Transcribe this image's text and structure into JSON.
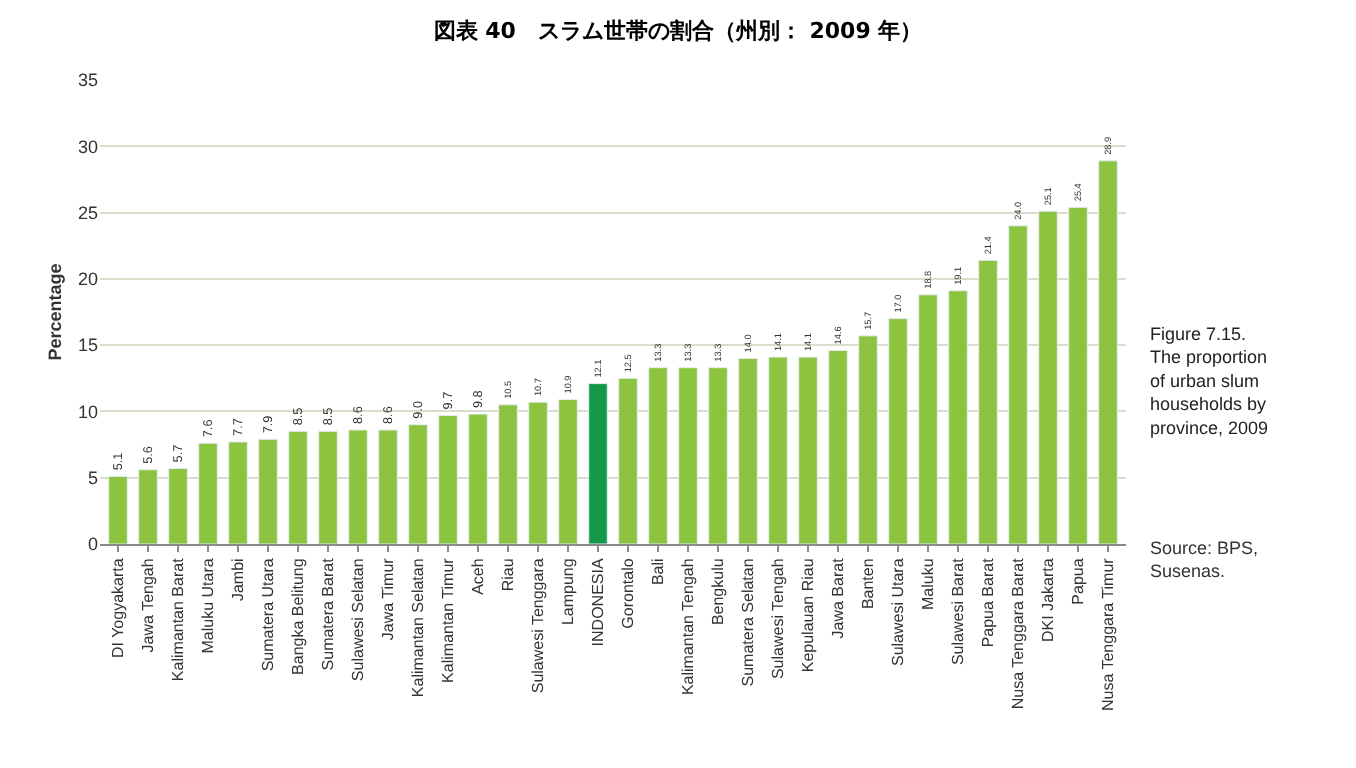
{
  "chart_data": {
    "type": "bar",
    "title": "図表 40　スラム世帯の割合（州別： 2009 年）",
    "ylabel": "Percentage",
    "categories": [
      "DI Yogyakarta",
      "Jawa Tengah",
      "Kalimantan Barat",
      "Maluku Utara",
      "Jambi",
      "Sumatera Utara",
      "Bangka Belitung",
      "Sumatera Barat",
      "Sulawesi Selatan",
      "Jawa Timur",
      "Kalimantan Selatan",
      "Kalimantan Timur",
      "Aceh",
      "Riau",
      "Sulawesi Tenggara",
      "Lampung",
      "INDONESIA",
      "Gorontalo",
      "Bali",
      "Kalimantan Tengah",
      "Bengkulu",
      "Sumatera Selatan",
      "Sulawesi Tengah",
      "Kepulauan Riau",
      "Jawa Barat",
      "Banten",
      "Sulawesi Utara",
      "Maluku",
      "Sulawesi Barat",
      "Papua Barat",
      "Nusa Tenggara Barat",
      "DKI Jakarta",
      "Papua",
      "Nusa Tenggara Timur"
    ],
    "values": [
      5.1,
      5.6,
      5.7,
      7.6,
      7.7,
      7.9,
      8.5,
      8.5,
      8.6,
      8.6,
      9.0,
      9.7,
      9.8,
      10.5,
      10.7,
      10.9,
      12.1,
      12.5,
      13.3,
      13.3,
      13.3,
      14.0,
      14.1,
      14.1,
      14.6,
      15.7,
      17.0,
      18.8,
      19.1,
      21.4,
      24.0,
      25.1,
      25.4,
      28.9
    ],
    "value_labels": [
      "5.1",
      "5.6",
      "5.7",
      "7.6",
      "7.7",
      "7.9",
      "8.5",
      "8.5",
      "8.6",
      "8.6",
      "9.0",
      "9.7",
      "9.8",
      "10.5",
      "10.7",
      "10.9",
      "12.1",
      "12.5",
      "13.3",
      "13.3",
      "13.3",
      "14.0",
      "14.1",
      "14.1",
      "14.6",
      "15.7",
      "17.0",
      "18.8",
      "19.1",
      "21.4",
      "24.0",
      "25.1",
      "25.4",
      "28.9"
    ],
    "colors": [
      "#8cc43f",
      "#8cc43f",
      "#8cc43f",
      "#8cc43f",
      "#8cc43f",
      "#8cc43f",
      "#8cc43f",
      "#8cc43f",
      "#8cc43f",
      "#8cc43f",
      "#8cc43f",
      "#8cc43f",
      "#8cc43f",
      "#8cc43f",
      "#8cc43f",
      "#8cc43f",
      "#16984a",
      "#8cc43f",
      "#8cc43f",
      "#8cc43f",
      "#8cc43f",
      "#8cc43f",
      "#8cc43f",
      "#8cc43f",
      "#8cc43f",
      "#8cc43f",
      "#8cc43f",
      "#8cc43f",
      "#8cc43f",
      "#8cc43f",
      "#8cc43f",
      "#8cc43f",
      "#8cc43f",
      "#8cc43f"
    ],
    "ylim": [
      0,
      35
    ],
    "yticks": [
      0,
      5,
      10,
      15,
      20,
      25,
      30,
      35
    ],
    "grid": "y",
    "annotations": [
      "Figure 7.15. The proportion of urban slum households by province, 2009",
      "Source: BPS, Susenas."
    ]
  }
}
